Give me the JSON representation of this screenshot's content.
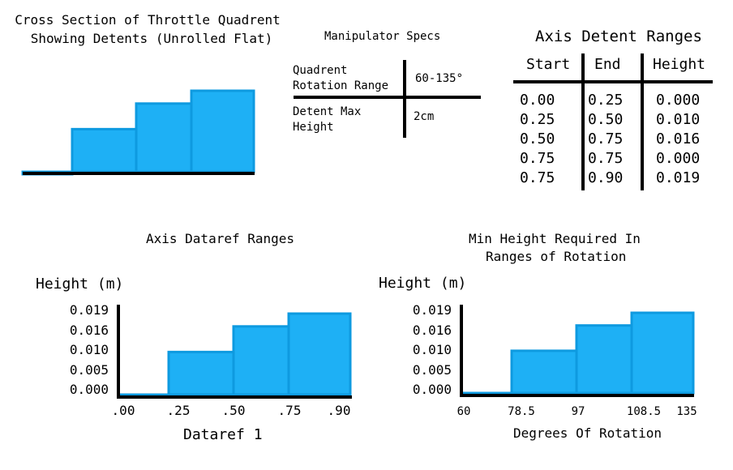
{
  "cross_section": {
    "title_line1": "Cross Section of Throttle Quadrent",
    "title_line2": "Showing Detents (Unrolled Flat)",
    "steps": [
      0.0,
      0.01,
      0.016,
      0.019
    ]
  },
  "specs": {
    "title": "Manipulator Specs",
    "row1_label_line1": "Quadrent",
    "row1_label_line2": "Rotation Range",
    "row1_value": "60-135°",
    "row2_label_line1": "Detent Max",
    "row2_label_line2": "Height",
    "row2_value": "2cm"
  },
  "detent_table": {
    "title": "Axis Detent Ranges",
    "headers": [
      "Start",
      "End",
      "Height"
    ],
    "rows": [
      [
        "0.00",
        "0.25",
        "0.000"
      ],
      [
        "0.25",
        "0.50",
        "0.010"
      ],
      [
        "0.50",
        "0.75",
        "0.016"
      ],
      [
        "0.75",
        "0.75",
        "0.000"
      ],
      [
        "0.75",
        "0.90",
        "0.019"
      ]
    ]
  },
  "chart1": {
    "title": "Axis Dataref Ranges",
    "ylabel": "Height (m)",
    "xlabel": "Dataref 1",
    "yticks": [
      "0.019",
      "0.016",
      "0.010",
      "0.005",
      "0.000"
    ],
    "xticks": [
      ".00",
      ".25",
      ".50",
      ".75",
      ".90"
    ]
  },
  "chart2": {
    "title_line1": "Min Height Required In",
    "title_line2": "Ranges of Rotation",
    "ylabel": "Height (m)",
    "xlabel": "Degrees Of Rotation",
    "yticks": [
      "0.019",
      "0.016",
      "0.010",
      "0.005",
      "0.000"
    ],
    "xticks": [
      "60",
      "78.5",
      "97",
      "108.5",
      "135"
    ]
  },
  "chart_data": [
    {
      "type": "bar",
      "title": "Axis Dataref Ranges",
      "xlabel": "Dataref 1",
      "ylabel": "Height (m)",
      "categories": [
        ".00-.25",
        ".25-.50",
        ".50-.75",
        ".75-.90"
      ],
      "values": [
        0.0,
        0.01,
        0.016,
        0.019
      ],
      "ylim": [
        0,
        0.019
      ]
    },
    {
      "type": "bar",
      "title": "Min Height Required In Ranges of Rotation",
      "xlabel": "Degrees Of Rotation",
      "ylabel": "Height (m)",
      "categories": [
        "60-78.5",
        "78.5-97",
        "97-108.5",
        "108.5-135"
      ],
      "values": [
        0.0,
        0.01,
        0.016,
        0.019
      ],
      "ylim": [
        0,
        0.019
      ]
    }
  ],
  "colors": {
    "bar_fill": "#1eb0f5",
    "bar_edge": "#0e9ae0",
    "ink": "#000000"
  }
}
